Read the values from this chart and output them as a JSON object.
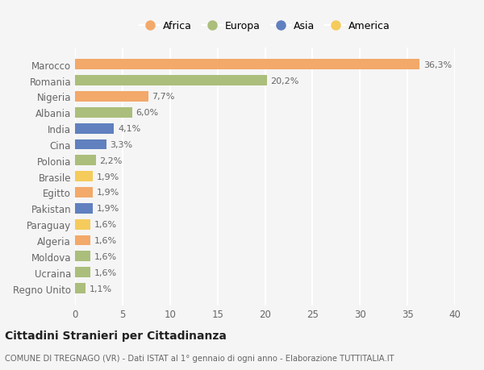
{
  "countries": [
    "Marocco",
    "Romania",
    "Nigeria",
    "Albania",
    "India",
    "Cina",
    "Polonia",
    "Brasile",
    "Egitto",
    "Pakistan",
    "Paraguay",
    "Algeria",
    "Moldova",
    "Ucraina",
    "Regno Unito"
  ],
  "values": [
    36.3,
    20.2,
    7.7,
    6.0,
    4.1,
    3.3,
    2.2,
    1.9,
    1.9,
    1.9,
    1.6,
    1.6,
    1.6,
    1.6,
    1.1
  ],
  "labels": [
    "36,3%",
    "20,2%",
    "7,7%",
    "6,0%",
    "4,1%",
    "3,3%",
    "2,2%",
    "1,9%",
    "1,9%",
    "1,9%",
    "1,6%",
    "1,6%",
    "1,6%",
    "1,6%",
    "1,1%"
  ],
  "continents": [
    "Africa",
    "Europa",
    "Africa",
    "Europa",
    "Asia",
    "Asia",
    "Europa",
    "America",
    "Africa",
    "Asia",
    "America",
    "Africa",
    "Europa",
    "Europa",
    "Europa"
  ],
  "continent_colors": {
    "Africa": "#F2A96A",
    "Europa": "#ABBE7B",
    "Asia": "#6080BF",
    "America": "#F5CB5C"
  },
  "legend_order": [
    "Africa",
    "Europa",
    "Asia",
    "America"
  ],
  "xlim": [
    0,
    40
  ],
  "xticks": [
    0,
    5,
    10,
    15,
    20,
    25,
    30,
    35,
    40
  ],
  "title": "Cittadini Stranieri per Cittadinanza",
  "subtitle": "COMUNE DI TREGNAGO (VR) - Dati ISTAT al 1° gennaio di ogni anno - Elaborazione TUTTITALIA.IT",
  "background_color": "#f5f5f5",
  "bar_height": 0.65,
  "grid_color": "#ffffff",
  "tick_label_fontsize": 8.5,
  "value_label_fontsize": 8.0
}
